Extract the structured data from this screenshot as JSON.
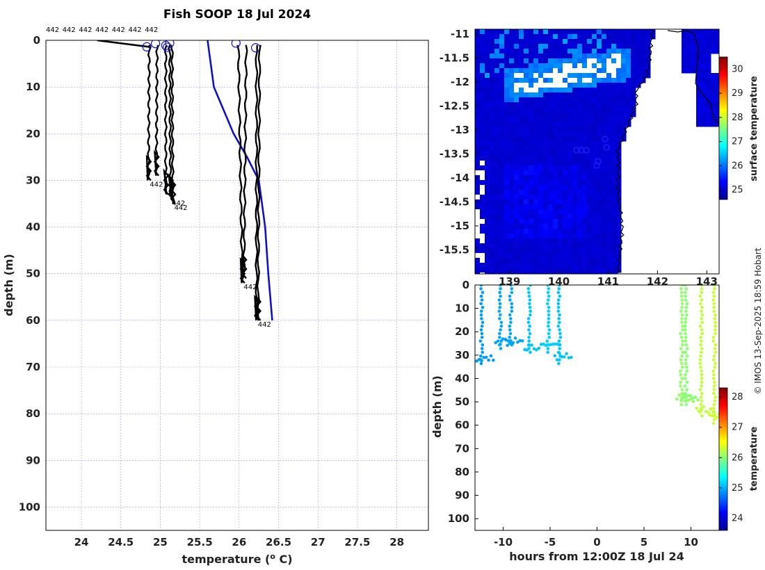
{
  "title": "Fish SOOP 18 Jul 2024",
  "credit": "© IMOS 13-Sep-2025 18:59 Hobart",
  "chart_data": [
    {
      "type": "line",
      "name": "temperature-depth profiles",
      "xlabel": "temperature (",
      "xlabel_sup": "o",
      "xlabel_tail": " C)",
      "ylabel": "depth (m)",
      "xlim": [
        23.55,
        28.4
      ],
      "ylim": [
        105,
        0
      ],
      "xticks": [
        24,
        24.5,
        25,
        25.5,
        26,
        26.5,
        27,
        27.5,
        28
      ],
      "xtick_labels": [
        "24",
        "24.5",
        "25",
        "25.5",
        "26",
        "26.5",
        "27",
        "27.5",
        "28"
      ],
      "yticks": [
        0,
        10,
        20,
        30,
        40,
        50,
        60,
        70,
        80,
        90,
        100
      ],
      "ytick_labels": [
        "0",
        "10",
        "20",
        "30",
        "40",
        "50",
        "60",
        "70",
        "80",
        "90",
        "100"
      ],
      "top_labels": [
        "442",
        "442",
        "442",
        "442",
        "442",
        "442",
        "442"
      ],
      "reference_profile": {
        "name": "climatology",
        "color": "#1010cc",
        "points": [
          [
            25.6,
            0
          ],
          [
            25.68,
            10
          ],
          [
            25.93,
            20
          ],
          [
            26.1,
            25
          ],
          [
            26.25,
            30
          ],
          [
            26.33,
            40
          ],
          [
            26.37,
            50
          ],
          [
            26.42,
            60
          ]
        ]
      },
      "profiles": [
        {
          "name": "p1",
          "x_surface": 24.86,
          "x_bottom": 24.85,
          "depth": 30,
          "circle": [
            24.83,
            1.4
          ],
          "label": "442"
        },
        {
          "name": "p2",
          "x_surface": 24.96,
          "x_bottom": 24.95,
          "depth": 29,
          "circle": [
            24.94,
            0.7
          ]
        },
        {
          "name": "p3",
          "x_surface": 25.07,
          "x_bottom": 25.07,
          "depth": 33,
          "circle": [
            25.07,
            1.1
          ]
        },
        {
          "name": "p4",
          "x_surface": 25.12,
          "x_bottom": 25.13,
          "depth": 34,
          "circle": [
            25.09,
            1.5
          ],
          "label": "442"
        },
        {
          "name": "p5",
          "x_surface": 25.15,
          "x_bottom": 25.16,
          "depth": 35,
          "circle": [
            25.12,
            0.6
          ],
          "label": "442"
        },
        {
          "name": "p6",
          "x_surface": 25.99,
          "x_bottom": 26.04,
          "depth": 52,
          "circle": [
            25.96,
            0.6
          ],
          "label": "442"
        },
        {
          "name": "p7",
          "x_surface": 26.09,
          "x_bottom": 26.06,
          "depth": 51
        },
        {
          "name": "p8",
          "x_surface": 26.22,
          "x_bottom": 26.22,
          "depth": 60,
          "circle": [
            26.21,
            1.6
          ],
          "label": "442"
        },
        {
          "name": "p9",
          "x_surface": 26.26,
          "x_bottom": 26.24,
          "depth": 60
        }
      ],
      "surface_tail": {
        "x_start": 24.2,
        "x_end": 24.86,
        "depth_start": 0.0,
        "depth_end": 1.4
      }
    },
    {
      "type": "heatmap",
      "name": "surface temperature map",
      "colorbar_label": "surface temperature",
      "xticks": [
        139,
        140,
        141,
        142,
        143
      ],
      "xtick_labels": [
        "139",
        "140",
        "141",
        "142",
        "143"
      ],
      "yticks": [
        -11,
        -11.5,
        -12,
        -12.5,
        -13,
        -13.5,
        -14,
        -14.5,
        -15,
        -15.5
      ],
      "ytick_labels": [
        "-11",
        "-11.5",
        "-12",
        "-12.5",
        "-13",
        "-13.5",
        "-14",
        "-14.5",
        "-15",
        "-15.5"
      ],
      "colorbar_ticks": [
        25,
        26,
        27,
        28,
        29,
        30
      ],
      "colorbar_tick_labels": [
        "25",
        "26",
        "27",
        "28",
        "29",
        "30"
      ],
      "colorbar_range": [
        24.6,
        30.5
      ]
    },
    {
      "type": "scatter",
      "name": "depth-time section",
      "xlabel": "hours from 12:00Z 18 Jul 24",
      "ylabel": "depth (m)",
      "xlim": [
        -13,
        13
      ],
      "ylim": [
        105,
        0
      ],
      "xticks": [
        -10,
        -5,
        0,
        5,
        10
      ],
      "xtick_labels": [
        "-10",
        "-5",
        "0",
        "5",
        "10"
      ],
      "yticks": [
        0,
        10,
        20,
        30,
        40,
        50,
        60,
        70,
        80,
        90,
        100
      ],
      "ytick_labels": [
        "0",
        "10",
        "20",
        "30",
        "40",
        "50",
        "60",
        "70",
        "80",
        "90",
        "100"
      ],
      "colorbar_label": "temperature",
      "colorbar_ticks": [
        24,
        25,
        26,
        27,
        28
      ],
      "colorbar_tick_labels": [
        "24",
        "25",
        "26",
        "27",
        "28"
      ],
      "colorbar_range": [
        23.6,
        28.3
      ],
      "casts": [
        {
          "hour": -12.3,
          "depth": 35,
          "temp": 24.9
        },
        {
          "hour": -10.3,
          "depth": 28,
          "temp": 24.95
        },
        {
          "hour": -9.2,
          "depth": 27,
          "temp": 24.95
        },
        {
          "hour": -7.2,
          "depth": 30,
          "temp": 25.1
        },
        {
          "hour": -5.2,
          "depth": 30,
          "temp": 25.15
        },
        {
          "hour": -4.0,
          "depth": 34,
          "temp": 25.1
        },
        {
          "hour": 9.0,
          "depth": 52,
          "temp": 26.05
        },
        {
          "hour": 9.5,
          "depth": 52,
          "temp": 26.0
        },
        {
          "hour": 11.1,
          "depth": 57,
          "temp": 26.25
        },
        {
          "hour": 12.5,
          "depth": 60,
          "temp": 26.3
        }
      ]
    }
  ]
}
